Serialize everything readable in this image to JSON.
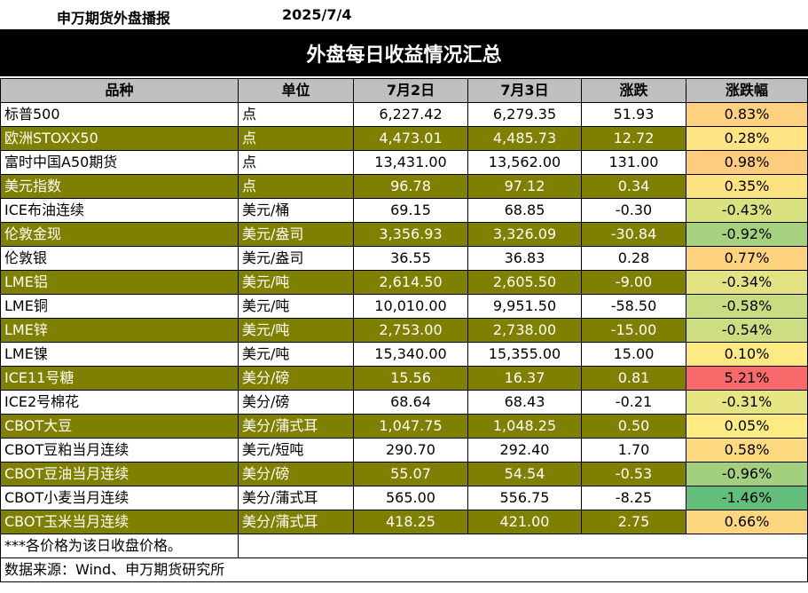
{
  "header": {
    "source": "申万期货外盘播报",
    "date": "2025/7/4",
    "title": "外盘每日收益情况汇总"
  },
  "columns": [
    "品种",
    "单位",
    "7月2日",
    "7月3日",
    "涨跌",
    "涨跌幅"
  ],
  "rows": [
    {
      "name": "标普500",
      "unit": "点",
      "d1": "6,227.42",
      "d2": "6,279.35",
      "chg": "51.93",
      "pct": "0.83%",
      "pct_color": "#fdd17f"
    },
    {
      "name": "欧洲STOXX50",
      "unit": "点",
      "d1": "4,473.01",
      "d2": "4,485.73",
      "chg": "12.72",
      "pct": "0.28%",
      "pct_color": "#fee483"
    },
    {
      "name": "富时中国A50期货",
      "unit": "点",
      "d1": "13,431.00",
      "d2": "13,562.00",
      "chg": "131.00",
      "pct": "0.98%",
      "pct_color": "#fdcc7e"
    },
    {
      "name": "美元指数",
      "unit": "点",
      "d1": "96.78",
      "d2": "97.12",
      "chg": "0.34",
      "pct": "0.35%",
      "pct_color": "#fee282"
    },
    {
      "name": "ICE布油连续",
      "unit": "美元/桶",
      "d1": "69.15",
      "d2": "68.85",
      "chg": "-0.30",
      "pct": "-0.43%",
      "pct_color": "#d9e181"
    },
    {
      "name": "伦敦金现",
      "unit": "美元/盎司",
      "d1": "3,356.93",
      "d2": "3,326.09",
      "chg": "-30.84",
      "pct": "-0.92%",
      "pct_color": "#a6d17f"
    },
    {
      "name": "伦敦银",
      "unit": "美元/盎司",
      "d1": "36.55",
      "d2": "36.83",
      "chg": "0.28",
      "pct": "0.77%",
      "pct_color": "#fdd37f"
    },
    {
      "name": "LME铝",
      "unit": "美元/吨",
      "d1": "2,614.50",
      "d2": "2,605.50",
      "chg": "-9.00",
      "pct": "-0.34%",
      "pct_color": "#e3e383"
    },
    {
      "name": "LME铜",
      "unit": "美元/吨",
      "d1": "10,010.00",
      "d2": "9,951.50",
      "chg": "-58.50",
      "pct": "-0.58%",
      "pct_color": "#c8dc81"
    },
    {
      "name": "LME锌",
      "unit": "美元/吨",
      "d1": "2,753.00",
      "d2": "2,738.00",
      "chg": "-15.00",
      "pct": "-0.54%",
      "pct_color": "#cddd81"
    },
    {
      "name": "LME镍",
      "unit": "美元/吨",
      "d1": "15,340.00",
      "d2": "15,355.00",
      "chg": "15.00",
      "pct": "0.10%",
      "pct_color": "#feea84"
    },
    {
      "name": "ICE11号糖",
      "unit": "美分/磅",
      "d1": "15.56",
      "d2": "16.37",
      "chg": "0.81",
      "pct": "5.21%",
      "pct_color": "#f8696b"
    },
    {
      "name": "ICE2号棉花",
      "unit": "美分/磅",
      "d1": "68.64",
      "d2": "68.43",
      "chg": "-0.21",
      "pct": "-0.31%",
      "pct_color": "#e6e483"
    },
    {
      "name": "CBOT大豆",
      "unit": "美分/蒲式耳",
      "d1": "1,047.75",
      "d2": "1,048.25",
      "chg": "0.50",
      "pct": "0.05%",
      "pct_color": "#feeb84"
    },
    {
      "name": "CBOT豆粕当月连续",
      "unit": "美元/短吨",
      "d1": "290.70",
      "d2": "292.40",
      "chg": "1.70",
      "pct": "0.58%",
      "pct_color": "#fdd980"
    },
    {
      "name": "CBOT豆油当月连续",
      "unit": "美分/磅",
      "d1": "55.07",
      "d2": "54.54",
      "chg": "-0.53",
      "pct": "-0.96%",
      "pct_color": "#a2d07f"
    },
    {
      "name": "CBOT小麦当月连续",
      "unit": "美分/蒲式耳",
      "d1": "565.00",
      "d2": "556.75",
      "chg": "-8.25",
      "pct": "-1.46%",
      "pct_color": "#63be7b"
    },
    {
      "name": "CBOT玉米当月连续",
      "unit": "美分/蒲式耳",
      "d1": "418.25",
      "d2": "421.00",
      "chg": "2.75",
      "pct": "0.66%",
      "pct_color": "#fdd680"
    }
  ],
  "footer": {
    "note": "***各价格为该日收盘价格。",
    "source": "数据来源：Wind、申万期货研究所"
  },
  "colors": {
    "odd_row": "#ffffff",
    "even_row": "#808000",
    "header_bg": "#bfbfbf",
    "title_bg": "#000000"
  }
}
